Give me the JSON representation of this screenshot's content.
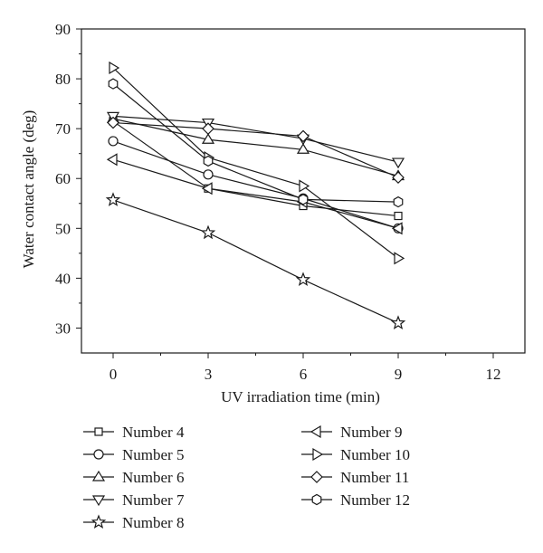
{
  "chart_data": {
    "type": "line",
    "xlabel": "UV irradiation time (min)",
    "ylabel": "Water contact angle (deg)",
    "xlim": [
      -1,
      13
    ],
    "ylim": [
      25,
      90
    ],
    "xticks": [
      0,
      3,
      6,
      9,
      12
    ],
    "yticks": [
      30,
      40,
      50,
      60,
      70,
      80,
      90
    ],
    "x": [
      0,
      3,
      6,
      9
    ],
    "grid": false,
    "legend_position": "below",
    "series": [
      {
        "name": "Number 4",
        "marker": "square",
        "values": [
          71.5,
          58.0,
          54.5,
          52.5
        ]
      },
      {
        "name": "Number 5",
        "marker": "circle",
        "values": [
          67.5,
          60.8,
          56.0,
          50.0
        ]
      },
      {
        "name": "Number 6",
        "marker": "triangle-up",
        "values": [
          72.0,
          67.8,
          65.8,
          60.5
        ]
      },
      {
        "name": "Number 7",
        "marker": "triangle-down",
        "values": [
          72.5,
          71.2,
          68.0,
          63.3
        ]
      },
      {
        "name": "Number 8",
        "marker": "star",
        "values": [
          55.7,
          49.1,
          39.7,
          31.0
        ]
      },
      {
        "name": "Number 9",
        "marker": "triangle-left",
        "values": [
          63.8,
          58.0,
          55.3,
          50.0
        ]
      },
      {
        "name": "Number 10",
        "marker": "triangle-right",
        "values": [
          82.2,
          64.2,
          58.5,
          44.0
        ]
      },
      {
        "name": "Number 11",
        "marker": "diamond",
        "values": [
          71.2,
          70.0,
          68.5,
          60.2
        ]
      },
      {
        "name": "Number 12",
        "marker": "hexagon",
        "values": [
          79.0,
          63.5,
          55.8,
          55.3
        ]
      }
    ]
  }
}
